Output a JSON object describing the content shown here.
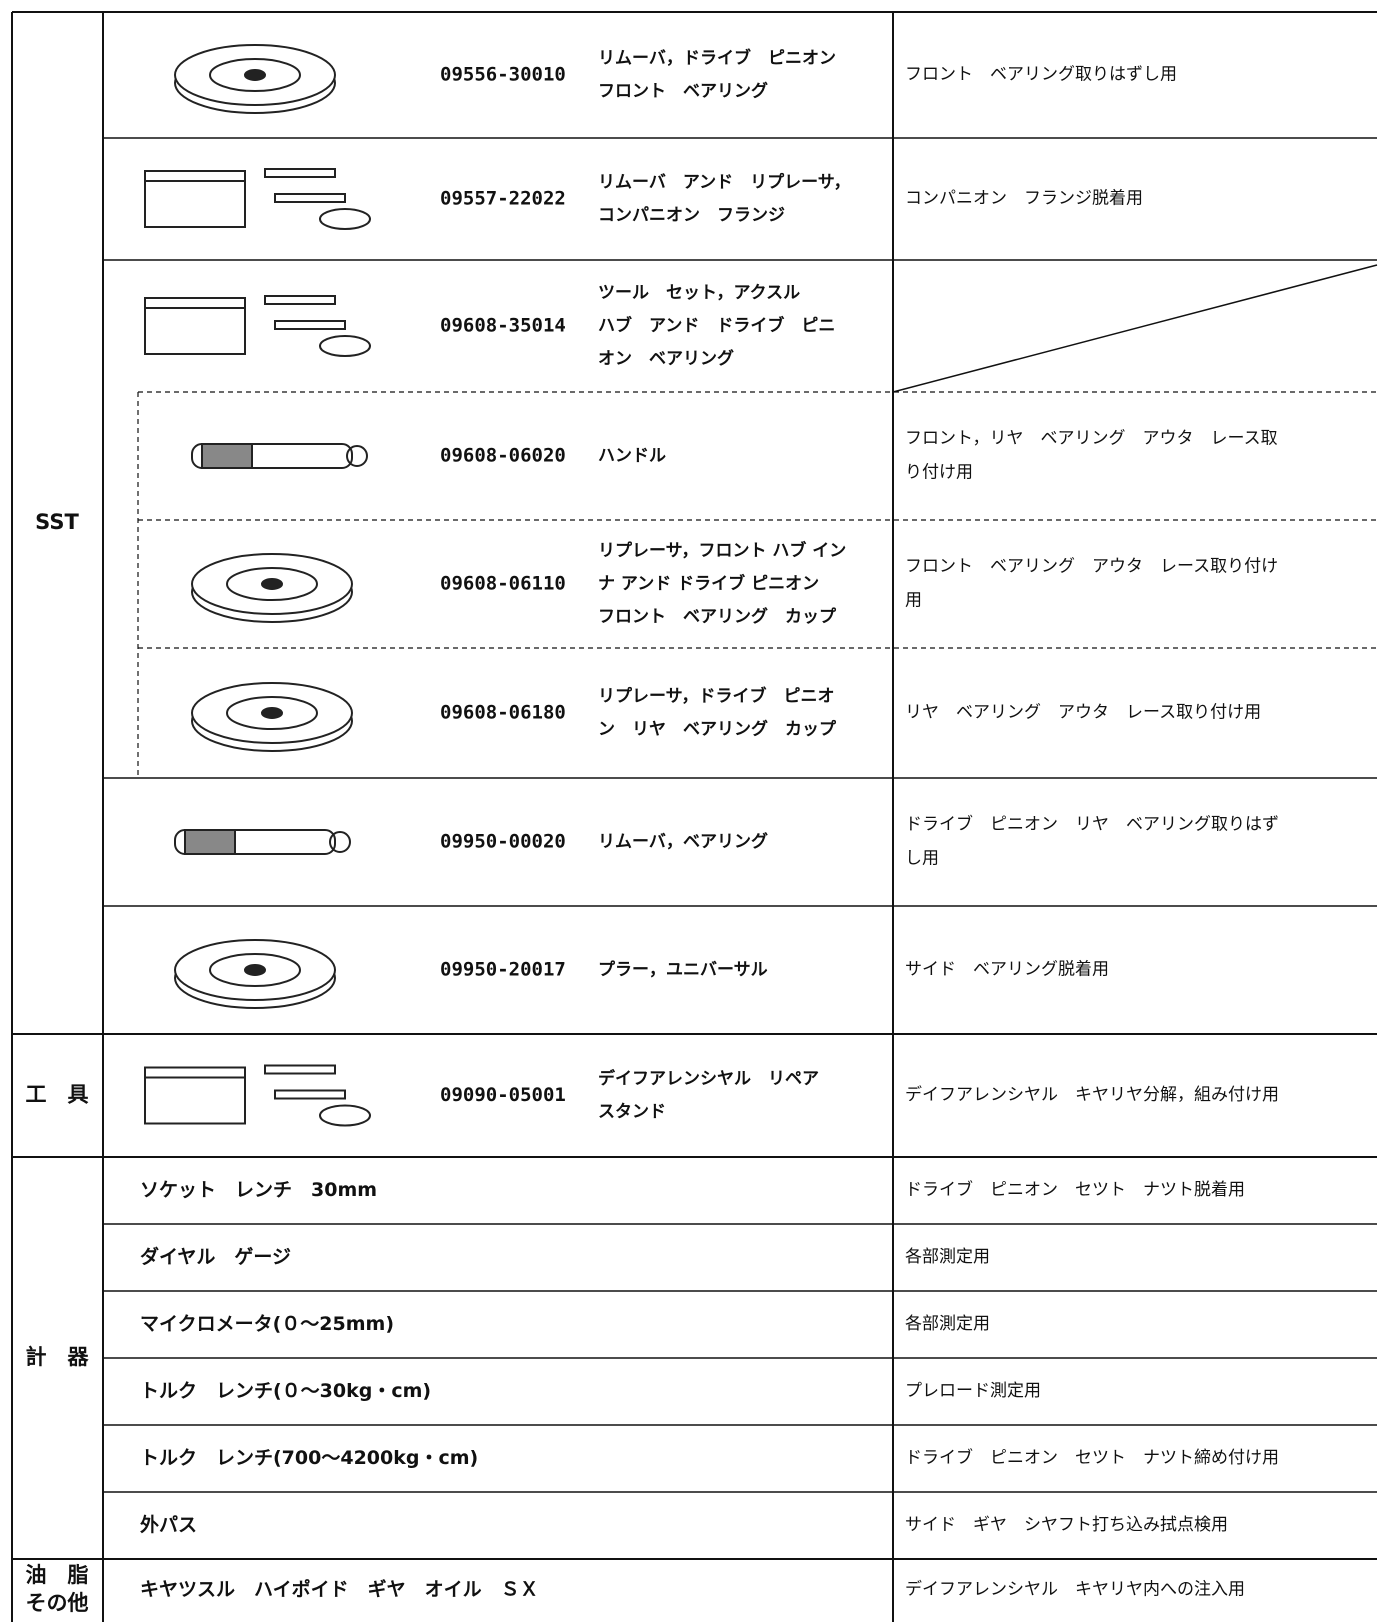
{
  "sections": [
    {
      "label": [
        "SST"
      ],
      "rows": [
        {
          "part_number": "09556-30010",
          "name": [
            "リムーバ，ドライブ　ピニオン",
            "フロント　ベアリング"
          ],
          "usage": [
            "フロント　ベアリング取りはずし用"
          ]
        },
        {
          "part_number": "09557-22022",
          "name": [
            "リムーバ　アンド　リプレーサ，",
            "コンパニオン　フランジ"
          ],
          "usage": [
            "コンパニオン　フランジ脱着用"
          ]
        },
        {
          "part_number": "09608-35014",
          "name": [
            "ツール　セット，アクスル",
            "ハブ　アンド　ドライブ　ピニ",
            "オン　ベアリング"
          ],
          "components": [
            {
              "part_number": "09608-06020",
              "name": [
                "ハンドル"
              ],
              "usage": [
                "フロント，リヤ　ベアリング　アウタ　レース取",
                "り付け用"
              ]
            },
            {
              "part_number": "09608-06110",
              "name": [
                "リプレーサ，フロント ハブ イン",
                "ナ アンド ドライブ ピニオン",
                "フロント　ベアリング　カップ"
              ],
              "usage": [
                "フロント　ベアリング　アウタ　レース取り付け",
                "用"
              ]
            },
            {
              "part_number": "09608-06180",
              "name": [
                "リプレーサ，ドライブ　ピニオ",
                "ン　リヤ　ベアリング　カップ"
              ],
              "usage": [
                "リヤ　ベアリング　アウタ　レース取り付け用"
              ]
            }
          ]
        },
        {
          "part_number": "09950-00020",
          "name": [
            "リムーバ，ベアリング"
          ],
          "usage": [
            "ドライブ　ピニオン　リヤ　ベアリング取りはず",
            "し用"
          ]
        },
        {
          "part_number": "09950-20017",
          "name": [
            "プラー，ユニバーサル"
          ],
          "usage": [
            "サイド　ベアリング脱着用"
          ]
        }
      ]
    },
    {
      "label": [
        "工　具"
      ],
      "rows": [
        {
          "part_number": "09090-05001",
          "name": [
            "デイフアレンシヤル　リペア",
            "スタンド"
          ],
          "usage": [
            "デイフアレンシヤル　キヤリヤ分解，組み付け用"
          ]
        }
      ]
    },
    {
      "label": [
        "計　器"
      ],
      "rows": [
        {
          "tool": "ソケット　レンチ　30mm",
          "usage": [
            "ドライブ　ピニオン　セツト　ナツト脱着用"
          ]
        },
        {
          "tool": "ダイヤル　ゲージ",
          "usage": [
            "各部測定用"
          ]
        },
        {
          "tool": "マイクロメータ(０～25mm)",
          "usage": [
            "各部測定用"
          ]
        },
        {
          "tool": "トルク　レンチ(０～30kg・cm)",
          "usage": [
            "プレロード測定用"
          ]
        },
        {
          "tool": "トルク　レンチ(700～4200kg・cm)",
          "usage": [
            "ドライブ　ピニオン　セツト　ナツト締め付け用"
          ]
        },
        {
          "tool": "外パス",
          "usage": [
            "サイド　ギヤ　シヤフト打ち込み拭点検用"
          ]
        }
      ]
    },
    {
      "label": [
        "油　脂",
        "その他"
      ],
      "rows": [
        {
          "tool": "キヤツスル　ハイポイド　ギヤ　オイル　ＳＸ",
          "usage": [
            "デイフアレンシヤル　キヤリヤ内への注入用"
          ]
        }
      ]
    }
  ]
}
